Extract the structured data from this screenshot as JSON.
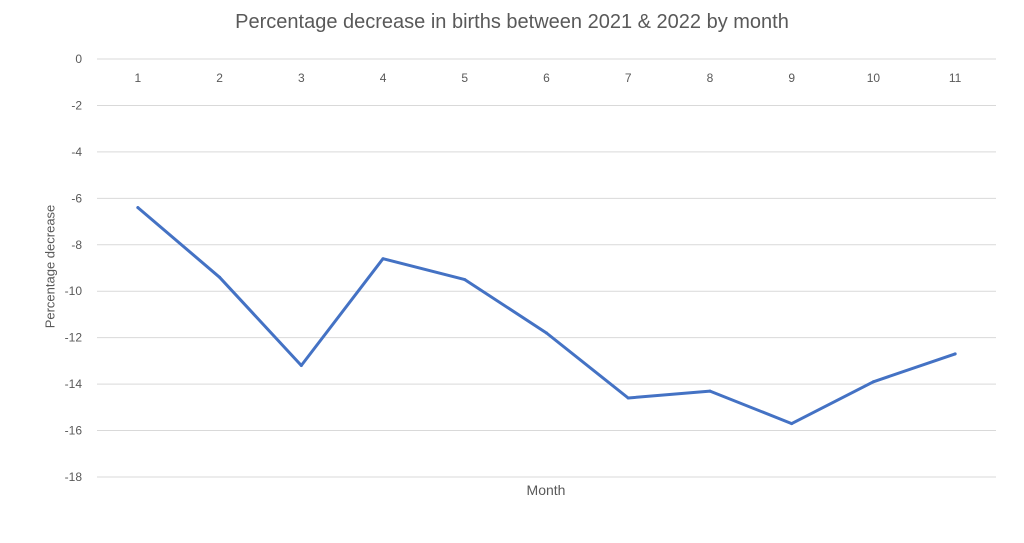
{
  "chart_data": {
    "type": "line",
    "title": "Percentage decrease in births between 2021 & 2022 by month",
    "xlabel": "Month",
    "ylabel": "Percentage decrease",
    "categories": [
      "1",
      "2",
      "3",
      "4",
      "5",
      "6",
      "7",
      "8",
      "9",
      "10",
      "11"
    ],
    "series": [
      {
        "values": [
          -6.4,
          -9.4,
          -13.2,
          -8.6,
          -9.5,
          -11.8,
          -14.6,
          -14.3,
          -15.7,
          -13.9,
          -12.7
        ]
      }
    ],
    "ylim": [
      -18,
      0
    ],
    "yticks": [
      "0",
      "-2",
      "-4",
      "-6",
      "-8",
      "-10",
      "-12",
      "-14",
      "-16",
      "-18"
    ],
    "grid": true,
    "legend": "none",
    "x_axis_labels_position": "top",
    "colors": {
      "line": "#4472C4",
      "grid": "#d9d9d9",
      "text": "#595959"
    }
  }
}
